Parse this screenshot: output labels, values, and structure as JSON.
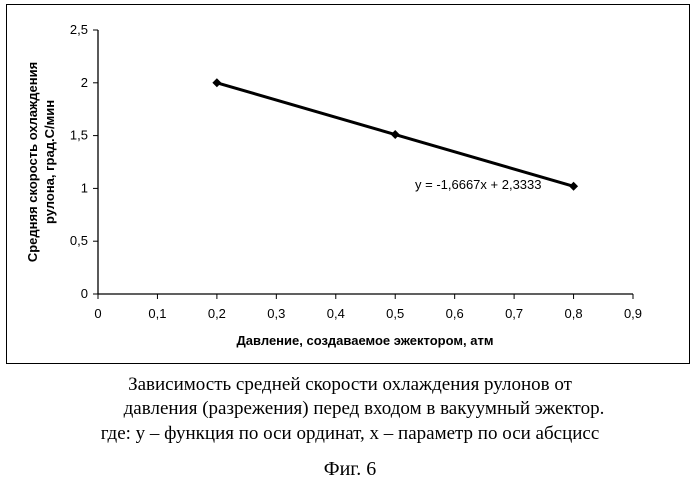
{
  "chart_data": {
    "type": "line",
    "title": "",
    "xlabel": "Давление, создаваемое эжектором, атм",
    "ylabel_lines": [
      "Средняя скорость охлаждения",
      "рулона, град.С/мин"
    ],
    "xlim": [
      0,
      0.9
    ],
    "ylim": [
      0,
      2.5
    ],
    "x_ticks": [
      0,
      0.1,
      0.2,
      0.3,
      0.4,
      0.5,
      0.6,
      0.7,
      0.8,
      0.9
    ],
    "x_tick_labels": [
      "0",
      "0,1",
      "0,2",
      "0,3",
      "0,4",
      "0,5",
      "0,6",
      "0,7",
      "0,8",
      "0,9"
    ],
    "y_ticks": [
      0,
      0.5,
      1,
      1.5,
      2,
      2.5
    ],
    "y_tick_labels": [
      "0",
      "0,5",
      "1",
      "1,5",
      "2",
      "2,5"
    ],
    "series": [
      {
        "x": [
          0.2,
          0.5,
          0.8
        ],
        "y": [
          2.0,
          1.51,
          1.02
        ]
      }
    ],
    "trendline_equation": "y = -1,6667x + 2,3333",
    "grid": false,
    "legend": "none",
    "colors": {
      "line": "#000000",
      "marker": "#000000"
    }
  },
  "caption": {
    "line1": "Зависимость средней скорости охлаждения рулонов от",
    "line2": "давления (разрежения) перед входом в вакуумный эжектор.",
    "line3": "где:  у – функция по оси ординат, х – параметр по оси абсцисс",
    "figure_label": "Фиг. 6"
  }
}
